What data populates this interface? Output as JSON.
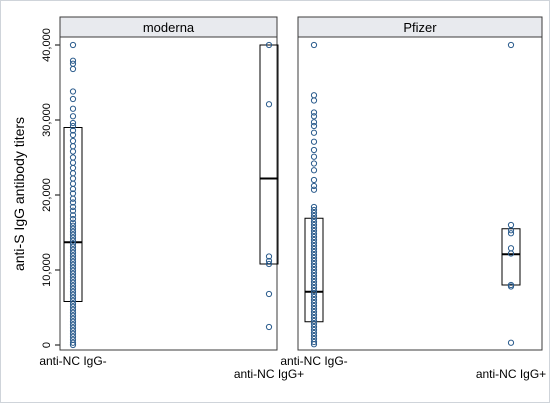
{
  "chart_data": {
    "type": "boxplot",
    "ylabel": "anti-S IgG antibody titers",
    "yticks": [
      0,
      10000,
      20000,
      30000,
      40000
    ],
    "ytick_labels": [
      "0",
      "10,000",
      "20,000",
      "30,000",
      "40,000"
    ],
    "ylim": [
      -400,
      41000
    ],
    "grid": false,
    "colors": {
      "panel_border": "#3b3b3b",
      "strip_fill": "#e8eaee",
      "marker": "#2a5b8c",
      "box": "#000000"
    },
    "panels": [
      {
        "title": "moderna",
        "groups": [
          {
            "label": "anti-NC IgG-",
            "box": {
              "q1": 5800,
              "median": 13700,
              "q3": 29000
            },
            "points": [
              40000,
              37900,
              37500,
              36800,
              33800,
              32800,
              31500,
              30500,
              29600,
              29200,
              28600,
              28000,
              27200,
              26500,
              25800,
              25000,
              24300,
              23600,
              22900,
              22200,
              21500,
              20800,
              20200,
              19500,
              19000,
              18400,
              17900,
              17300,
              16800,
              16300,
              15900,
              15500,
              15100,
              14700,
              14300,
              13900,
              13500,
              13100,
              12700,
              12300,
              11900,
              11500,
              11100,
              10700,
              10300,
              9900,
              9500,
              9100,
              8700,
              8300,
              7900,
              7500,
              7100,
              6700,
              6300,
              5900,
              5500,
              5100,
              4700,
              4300,
              3900,
              3500,
              3100,
              2700,
              2300,
              1900,
              1500,
              1100,
              700,
              300,
              0
            ]
          },
          {
            "label": "anti-NC IgG+",
            "box": {
              "q1": 10800,
              "median": 22200,
              "q3": 40000
            },
            "points": [
              40000,
              32100,
              11800,
              11200,
              10800,
              6800,
              2400
            ]
          }
        ]
      },
      {
        "title": "Pfizer",
        "groups": [
          {
            "label": "anti-NC IgG-",
            "box": {
              "q1": 3100,
              "median": 7100,
              "q3": 16900
            },
            "points": [
              40000,
              33300,
              32600,
              31000,
              30500,
              29700,
              29200,
              28300,
              27100,
              26000,
              25100,
              24200,
              23300,
              22000,
              21200,
              20700,
              18400,
              18000,
              17600,
              17200,
              16800,
              16400,
              16000,
              15600,
              15200,
              14800,
              14400,
              14000,
              13600,
              13200,
              12800,
              12400,
              12000,
              11600,
              11200,
              10800,
              10400,
              10000,
              9600,
              9200,
              8800,
              8400,
              8000,
              7600,
              7200,
              6800,
              6400,
              6000,
              5600,
              5200,
              4800,
              4400,
              4000,
              3600,
              3200,
              2800,
              2400,
              2000,
              1600,
              1200,
              800,
              400,
              100
            ]
          },
          {
            "label": "anti-NC IgG+",
            "box": {
              "q1": 8000,
              "median": 12100,
              "q3": 15500
            },
            "points": [
              40000,
              16000,
              15300,
              14900,
              12900,
              12200,
              8000,
              7800,
              300
            ]
          }
        ]
      }
    ]
  }
}
